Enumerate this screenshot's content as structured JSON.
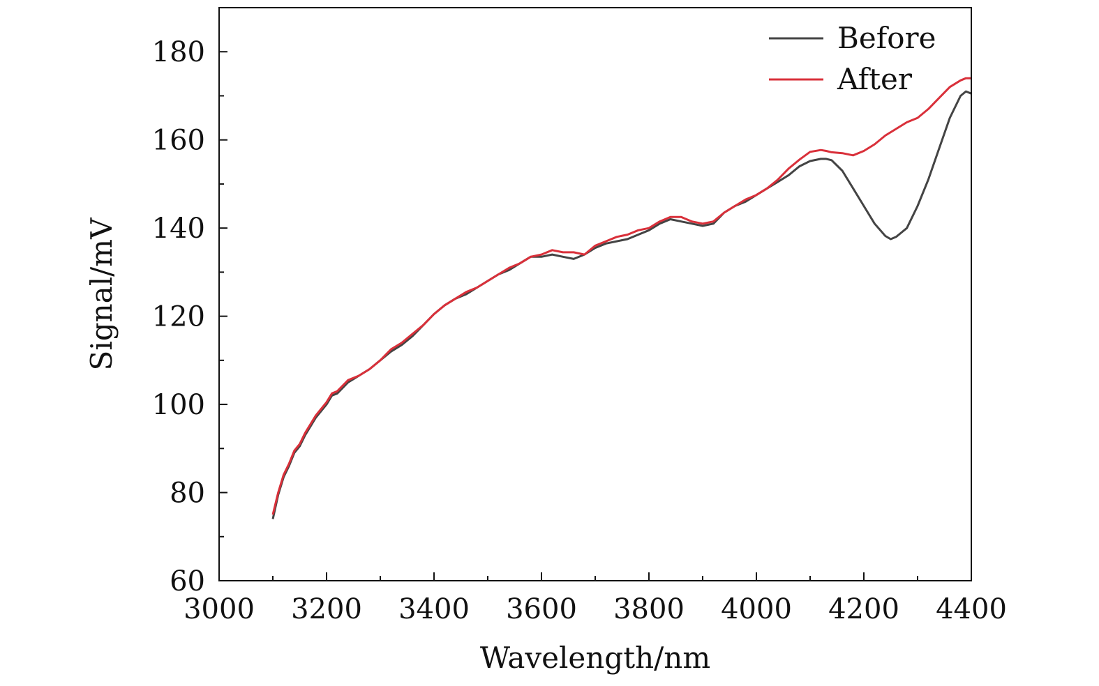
{
  "chart_data": {
    "type": "line",
    "title": "",
    "xlabel": "Wavelength/nm",
    "ylabel": "Signal/mV",
    "xlim": [
      3000,
      4400
    ],
    "ylim": [
      60,
      190
    ],
    "x_ticks": [
      3000,
      3200,
      3400,
      3600,
      3800,
      4000,
      4200,
      4400
    ],
    "y_ticks": [
      60,
      80,
      100,
      120,
      140,
      160,
      180
    ],
    "x_tick_labels": [
      "3000",
      "3200",
      "3400",
      "3600",
      "3800",
      "4000",
      "4200",
      "4400"
    ],
    "y_tick_labels": [
      "60",
      "80",
      "100",
      "120",
      "140",
      "160",
      "180"
    ],
    "grid": false,
    "legend_position": "top-right",
    "series": [
      {
        "name": "Before",
        "color": "#444444",
        "x": [
          3100,
          3110,
          3120,
          3130,
          3140,
          3150,
          3160,
          3170,
          3180,
          3190,
          3200,
          3210,
          3220,
          3240,
          3260,
          3280,
          3300,
          3320,
          3340,
          3360,
          3380,
          3400,
          3420,
          3440,
          3460,
          3480,
          3500,
          3520,
          3540,
          3560,
          3580,
          3600,
          3620,
          3640,
          3660,
          3680,
          3700,
          3720,
          3740,
          3760,
          3780,
          3800,
          3820,
          3840,
          3860,
          3880,
          3900,
          3920,
          3940,
          3960,
          3980,
          4000,
          4020,
          4040,
          4060,
          4080,
          4100,
          4120,
          4130,
          4140,
          4160,
          4180,
          4200,
          4220,
          4240,
          4250,
          4260,
          4270,
          4280,
          4300,
          4320,
          4340,
          4360,
          4380,
          4390,
          4400
        ],
        "values": [
          74,
          79.5,
          83.5,
          86,
          89,
          90.5,
          93,
          95,
          97,
          98.5,
          100,
          102,
          102.5,
          105,
          106.5,
          108,
          110,
          112,
          113.5,
          115.5,
          118,
          120.5,
          122.5,
          124,
          125,
          126.5,
          128,
          129.5,
          130.5,
          132,
          133.5,
          133.5,
          134,
          133.5,
          133,
          134,
          135.5,
          136.5,
          137,
          137.5,
          138.5,
          139.5,
          141,
          142,
          141.5,
          141,
          140.5,
          141,
          143.5,
          145,
          146,
          147.5,
          149,
          150.5,
          152,
          154,
          155.2,
          155.7,
          155.7,
          155.4,
          153,
          149,
          145,
          141,
          138.2,
          137.5,
          138,
          139,
          140,
          145,
          151,
          158,
          165,
          170,
          171,
          170.5
        ]
      },
      {
        "name": "After",
        "color": "#d9303a",
        "x": [
          3100,
          3110,
          3120,
          3130,
          3140,
          3150,
          3160,
          3170,
          3180,
          3190,
          3200,
          3210,
          3220,
          3240,
          3260,
          3280,
          3300,
          3320,
          3340,
          3360,
          3380,
          3400,
          3420,
          3440,
          3460,
          3480,
          3500,
          3520,
          3540,
          3560,
          3580,
          3600,
          3620,
          3640,
          3660,
          3680,
          3700,
          3720,
          3740,
          3760,
          3780,
          3800,
          3820,
          3840,
          3860,
          3880,
          3900,
          3920,
          3940,
          3960,
          3980,
          4000,
          4020,
          4040,
          4060,
          4080,
          4100,
          4120,
          4130,
          4140,
          4160,
          4180,
          4200,
          4220,
          4240,
          4260,
          4280,
          4300,
          4320,
          4340,
          4360,
          4380,
          4390,
          4400
        ],
        "values": [
          75,
          80,
          84,
          86.5,
          89.5,
          91,
          93.5,
          95.5,
          97.5,
          99,
          100.5,
          102.5,
          103,
          105.5,
          106.5,
          108,
          110,
          112.5,
          114,
          116,
          118,
          120.5,
          122.5,
          124,
          125.5,
          126.5,
          128,
          129.5,
          131,
          132,
          133.5,
          134,
          135,
          134.5,
          134.5,
          134,
          136,
          137,
          138,
          138.5,
          139.5,
          140,
          141.5,
          142.5,
          142.5,
          141.5,
          141,
          141.5,
          143.5,
          145,
          146.5,
          147.5,
          149,
          151,
          153.5,
          155.5,
          157.3,
          157.7,
          157.5,
          157.2,
          157,
          156.5,
          157.5,
          159,
          161,
          162.5,
          164,
          165,
          167,
          169.5,
          172,
          173.5,
          174,
          174
        ]
      }
    ]
  }
}
